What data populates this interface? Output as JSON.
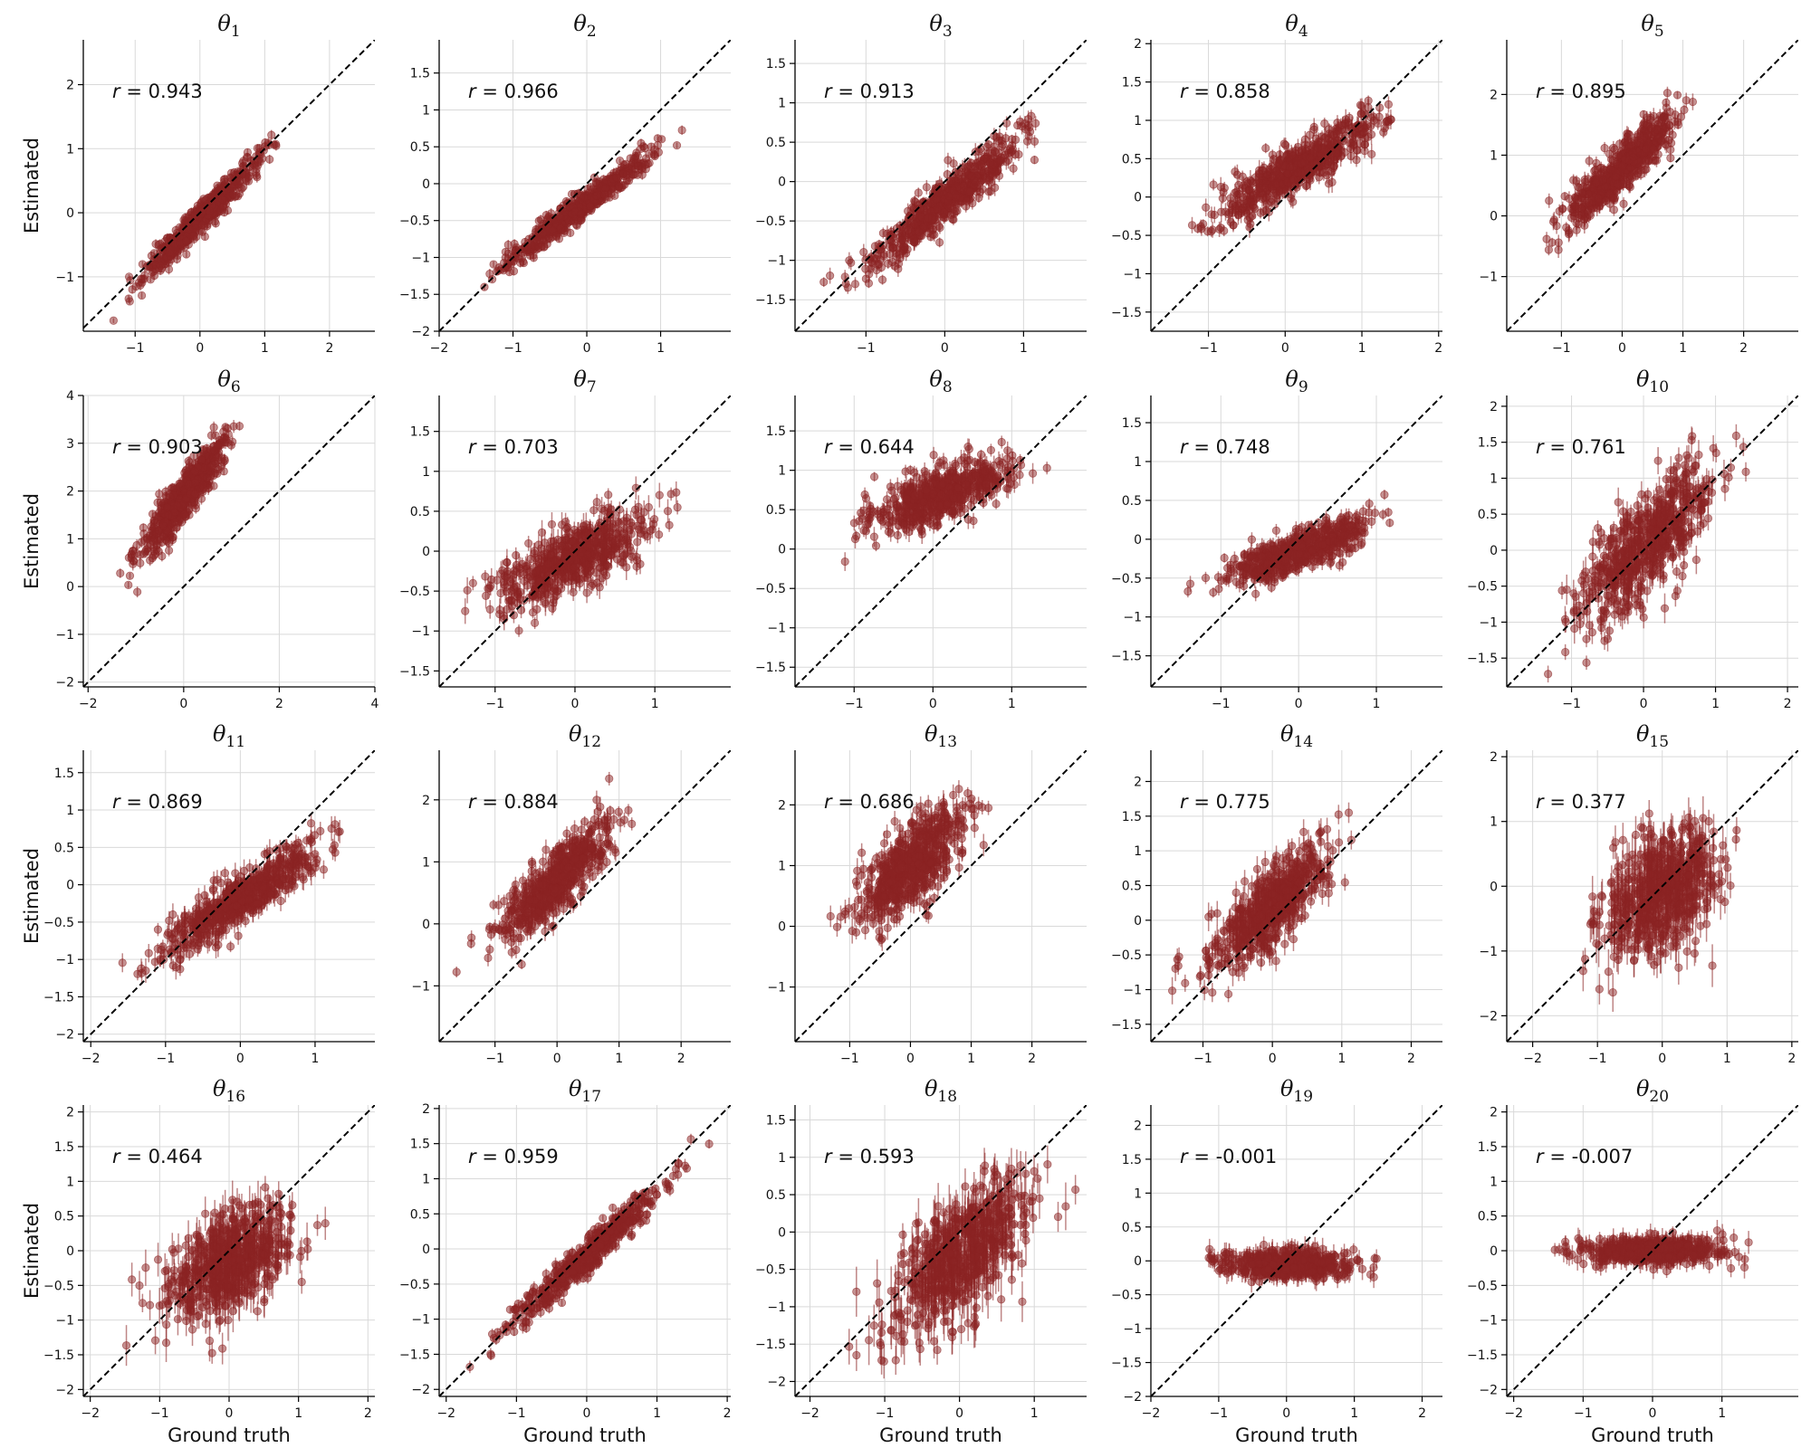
{
  "figure": {
    "xlabel": "Ground truth",
    "ylabel": "Estimated",
    "point_color": "#8b2323",
    "diagonal_color": "#000000"
  },
  "chart_data": [
    {
      "type": "scatter",
      "title": "θ1",
      "subscript": "1",
      "correlation": "r = 0.943",
      "xlim": [
        -1.8,
        2.7
      ],
      "ylim": [
        -1.85,
        2.7
      ],
      "xticks": [
        -1,
        0,
        1,
        2
      ],
      "yticks": [
        -1,
        0,
        1,
        2
      ],
      "x_center": 0.0,
      "x_sd": 0.45,
      "slope": 1.0,
      "intercept": -0.1,
      "noise": 0.12,
      "err": 0.06,
      "grid": true,
      "diagonal": true
    },
    {
      "type": "scatter",
      "title": "θ2",
      "subscript": "2",
      "correlation": "r = 0.966",
      "xlim": [
        -2.0,
        1.95
      ],
      "ylim": [
        -2.0,
        1.95
      ],
      "xticks": [
        -2,
        -1,
        0,
        1
      ],
      "yticks": [
        -2.0,
        -1.5,
        -1.0,
        -0.5,
        0.0,
        0.5,
        1.0,
        1.5
      ],
      "x_center": -0.1,
      "x_sd": 0.5,
      "slope": 0.75,
      "intercept": -0.25,
      "noise": 0.09,
      "err": 0.05,
      "grid": true,
      "diagonal": true
    },
    {
      "type": "scatter",
      "title": "θ3",
      "subscript": "3",
      "correlation": "r = 0.913",
      "xlim": [
        -1.9,
        1.8
      ],
      "ylim": [
        -1.9,
        1.8
      ],
      "xticks": [
        -1,
        0,
        1
      ],
      "yticks": [
        -1.5,
        -1.0,
        -0.5,
        0.0,
        0.5,
        1.0,
        1.5
      ],
      "x_center": 0.0,
      "x_sd": 0.45,
      "slope": 0.8,
      "intercept": -0.25,
      "noise": 0.15,
      "err": 0.08,
      "grid": true,
      "diagonal": true
    },
    {
      "type": "scatter",
      "title": "θ4",
      "subscript": "4",
      "correlation": "r = 0.858",
      "xlim": [
        -1.75,
        2.05
      ],
      "ylim": [
        -1.75,
        2.05
      ],
      "xticks": [
        -1,
        0,
        1,
        2
      ],
      "yticks": [
        -1.5,
        -1.0,
        -0.5,
        0.0,
        0.5,
        1.0,
        1.5,
        2.0
      ],
      "x_center": 0.2,
      "x_sd": 0.5,
      "slope": 0.55,
      "intercept": 0.3,
      "noise": 0.15,
      "err": 0.1,
      "grid": true,
      "diagonal": true
    },
    {
      "type": "scatter",
      "title": "θ5",
      "subscript": "5",
      "correlation": "r = 0.895",
      "xlim": [
        -1.9,
        2.9
      ],
      "ylim": [
        -1.9,
        2.9
      ],
      "xticks": [
        -1,
        0,
        1,
        2
      ],
      "yticks": [
        -1,
        0,
        1,
        2
      ],
      "x_center": 0.0,
      "x_sd": 0.45,
      "slope": 0.9,
      "intercept": 0.8,
      "noise": 0.2,
      "err": 0.1,
      "grid": true,
      "diagonal": true
    },
    {
      "type": "scatter",
      "title": "θ6",
      "subscript": "6",
      "correlation": "r = 0.903",
      "xlim": [
        -2.1,
        4.0
      ],
      "ylim": [
        -2.1,
        4.0
      ],
      "xticks": [
        -2,
        0,
        2,
        4
      ],
      "yticks": [
        -2,
        -1,
        0,
        1,
        2,
        3,
        4
      ],
      "x_center": 0.0,
      "x_sd": 0.45,
      "slope": 1.25,
      "intercept": 1.9,
      "noise": 0.25,
      "err": 0.1,
      "grid": true,
      "diagonal": true
    },
    {
      "type": "scatter",
      "title": "θ7",
      "subscript": "7",
      "correlation": "r = 0.703",
      "xlim": [
        -1.7,
        1.95
      ],
      "ylim": [
        -1.7,
        1.95
      ],
      "xticks": [
        -1,
        0,
        1
      ],
      "yticks": [
        -1.5,
        -1.0,
        -0.5,
        0.0,
        0.5,
        1.0,
        1.5
      ],
      "x_center": 0.0,
      "x_sd": 0.45,
      "slope": 0.45,
      "intercept": -0.1,
      "noise": 0.2,
      "err": 0.12,
      "grid": true,
      "diagonal": true
    },
    {
      "type": "scatter",
      "title": "θ8",
      "subscript": "8",
      "correlation": "r = 0.644",
      "xlim": [
        -1.75,
        1.95
      ],
      "ylim": [
        -1.75,
        1.95
      ],
      "xticks": [
        -1,
        0,
        1
      ],
      "yticks": [
        -1.5,
        -1.0,
        -0.5,
        0.0,
        0.5,
        1.0,
        1.5
      ],
      "x_center": 0.1,
      "x_sd": 0.45,
      "slope": 0.35,
      "intercept": 0.65,
      "noise": 0.18,
      "err": 0.1,
      "grid": true,
      "diagonal": true
    },
    {
      "type": "scatter",
      "title": "θ9",
      "subscript": "9",
      "correlation": "r = 0.748",
      "xlim": [
        -1.9,
        1.85
      ],
      "ylim": [
        -1.9,
        1.85
      ],
      "xticks": [
        -1,
        0,
        1
      ],
      "yticks": [
        -1.5,
        -1.0,
        -0.5,
        0.0,
        0.5,
        1.0,
        1.5
      ],
      "x_center": 0.0,
      "x_sd": 0.45,
      "slope": 0.35,
      "intercept": -0.15,
      "noise": 0.13,
      "err": 0.08,
      "grid": true,
      "diagonal": true
    },
    {
      "type": "scatter",
      "title": "θ10",
      "subscript": "10",
      "correlation": "r = 0.761",
      "xlim": [
        -1.9,
        2.15
      ],
      "ylim": [
        -1.9,
        2.15
      ],
      "xticks": [
        -1,
        0,
        1,
        2
      ],
      "yticks": [
        -1.5,
        -1.0,
        -0.5,
        0.0,
        0.5,
        1.0,
        1.5,
        2.0
      ],
      "x_center": 0.0,
      "x_sd": 0.45,
      "slope": 0.9,
      "intercept": 0.05,
      "noise": 0.35,
      "err": 0.15,
      "grid": true,
      "diagonal": true
    },
    {
      "type": "scatter",
      "title": "θ11",
      "subscript": "11",
      "correlation": "r = 0.869",
      "xlim": [
        -2.1,
        1.8
      ],
      "ylim": [
        -2.1,
        1.8
      ],
      "xticks": [
        -2,
        -1,
        0,
        1
      ],
      "yticks": [
        -2.0,
        -1.5,
        -1.0,
        -0.5,
        0.0,
        0.5,
        1.0,
        1.5
      ],
      "x_center": 0.0,
      "x_sd": 0.5,
      "slope": 0.65,
      "intercept": -0.2,
      "noise": 0.17,
      "err": 0.12,
      "grid": true,
      "diagonal": true
    },
    {
      "type": "scatter",
      "title": "θ12",
      "subscript": "12",
      "correlation": "r = 0.884",
      "xlim": [
        -1.9,
        2.8
      ],
      "ylim": [
        -1.9,
        2.8
      ],
      "xticks": [
        -1,
        0,
        1,
        2
      ],
      "yticks": [
        -1,
        0,
        1,
        2
      ],
      "x_center": 0.0,
      "x_sd": 0.45,
      "slope": 0.9,
      "intercept": 0.7,
      "noise": 0.25,
      "err": 0.12,
      "grid": true,
      "diagonal": true
    },
    {
      "type": "scatter",
      "title": "θ13",
      "subscript": "13",
      "correlation": "r = 0.686",
      "xlim": [
        -1.9,
        2.9
      ],
      "ylim": [
        -1.9,
        2.9
      ],
      "xticks": [
        -1,
        0,
        1,
        2
      ],
      "yticks": [
        -1,
        0,
        1,
        2
      ],
      "x_center": 0.0,
      "x_sd": 0.45,
      "slope": 0.75,
      "intercept": 1.0,
      "noise": 0.35,
      "err": 0.15,
      "grid": true,
      "diagonal": true
    },
    {
      "type": "scatter",
      "title": "θ14",
      "subscript": "14",
      "correlation": "r = 0.775",
      "xlim": [
        -1.75,
        2.45
      ],
      "ylim": [
        -1.75,
        2.45
      ],
      "xticks": [
        -1,
        0,
        1,
        2
      ],
      "yticks": [
        -1.5,
        -1.0,
        -0.5,
        0.0,
        0.5,
        1.0,
        1.5,
        2.0
      ],
      "x_center": 0.0,
      "x_sd": 0.45,
      "slope": 0.8,
      "intercept": 0.2,
      "noise": 0.28,
      "err": 0.15,
      "grid": true,
      "diagonal": true
    },
    {
      "type": "scatter",
      "title": "θ15",
      "subscript": "15",
      "correlation": "r = 0.377",
      "xlim": [
        -2.4,
        2.1
      ],
      "ylim": [
        -2.4,
        2.1
      ],
      "xticks": [
        -2,
        -1,
        0,
        1,
        2
      ],
      "yticks": [
        -2,
        -1,
        0,
        1,
        2
      ],
      "x_center": 0.0,
      "x_sd": 0.45,
      "slope": 0.45,
      "intercept": -0.1,
      "noise": 0.45,
      "err": 0.25,
      "grid": true,
      "diagonal": true
    },
    {
      "type": "scatter",
      "title": "θ16",
      "subscript": "16",
      "correlation": "r = 0.464",
      "xlim": [
        -2.1,
        2.1
      ],
      "ylim": [
        -2.1,
        2.1
      ],
      "xticks": [
        -2,
        -1,
        0,
        1,
        2
      ],
      "yticks": [
        -2.0,
        -1.5,
        -1.0,
        -0.5,
        0.0,
        0.5,
        1.0,
        1.5,
        2.0
      ],
      "x_center": 0.0,
      "x_sd": 0.45,
      "slope": 0.45,
      "intercept": -0.15,
      "noise": 0.35,
      "err": 0.22,
      "grid": true,
      "diagonal": true
    },
    {
      "type": "scatter",
      "title": "θ17",
      "subscript": "17",
      "correlation": "r = 0.959",
      "xlim": [
        -2.1,
        2.05
      ],
      "ylim": [
        -2.1,
        2.05
      ],
      "xticks": [
        -2,
        -1,
        0,
        1,
        2
      ],
      "yticks": [
        -2.0,
        -1.5,
        -1.0,
        -0.5,
        0.0,
        0.5,
        1.0,
        1.5,
        2.0
      ],
      "x_center": 0.0,
      "x_sd": 0.5,
      "slope": 0.9,
      "intercept": -0.1,
      "noise": 0.12,
      "err": 0.07,
      "grid": true,
      "diagonal": true
    },
    {
      "type": "scatter",
      "title": "θ18",
      "subscript": "18",
      "correlation": "r = 0.593",
      "xlim": [
        -2.2,
        1.7
      ],
      "ylim": [
        -2.2,
        1.7
      ],
      "xticks": [
        -2,
        -1,
        0,
        1
      ],
      "yticks": [
        -2.0,
        -1.5,
        -1.0,
        -0.5,
        0.0,
        0.5,
        1.0,
        1.5
      ],
      "x_center": 0.0,
      "x_sd": 0.45,
      "slope": 0.75,
      "intercept": -0.35,
      "noise": 0.4,
      "err": 0.25,
      "grid": true,
      "diagonal": true
    },
    {
      "type": "scatter",
      "title": "θ19",
      "subscript": "19",
      "correlation": "r = -0.001",
      "xlim": [
        -2.0,
        2.3
      ],
      "ylim": [
        -2.0,
        2.3
      ],
      "xticks": [
        -2,
        -1,
        0,
        1,
        2
      ],
      "yticks": [
        -2.0,
        -1.5,
        -1.0,
        -0.5,
        0.0,
        0.5,
        1.0,
        1.5,
        2.0
      ],
      "x_center": 0.0,
      "x_sd": 0.45,
      "slope": 0.0,
      "intercept": -0.05,
      "noise": 0.1,
      "err": 0.12,
      "grid": true,
      "diagonal": true
    },
    {
      "type": "scatter",
      "title": "θ20",
      "subscript": "20",
      "correlation": "r = -0.007",
      "xlim": [
        -2.1,
        2.1
      ],
      "ylim": [
        -2.1,
        2.1
      ],
      "xticks": [
        -2,
        -1,
        0,
        1
      ],
      "yticks": [
        -2.0,
        -1.5,
        -1.0,
        -0.5,
        0.0,
        0.5,
        1.0,
        1.5,
        2.0
      ],
      "x_center": 0.0,
      "x_sd": 0.5,
      "slope": 0.0,
      "intercept": 0.0,
      "noise": 0.09,
      "err": 0.12,
      "grid": true,
      "diagonal": true
    }
  ]
}
